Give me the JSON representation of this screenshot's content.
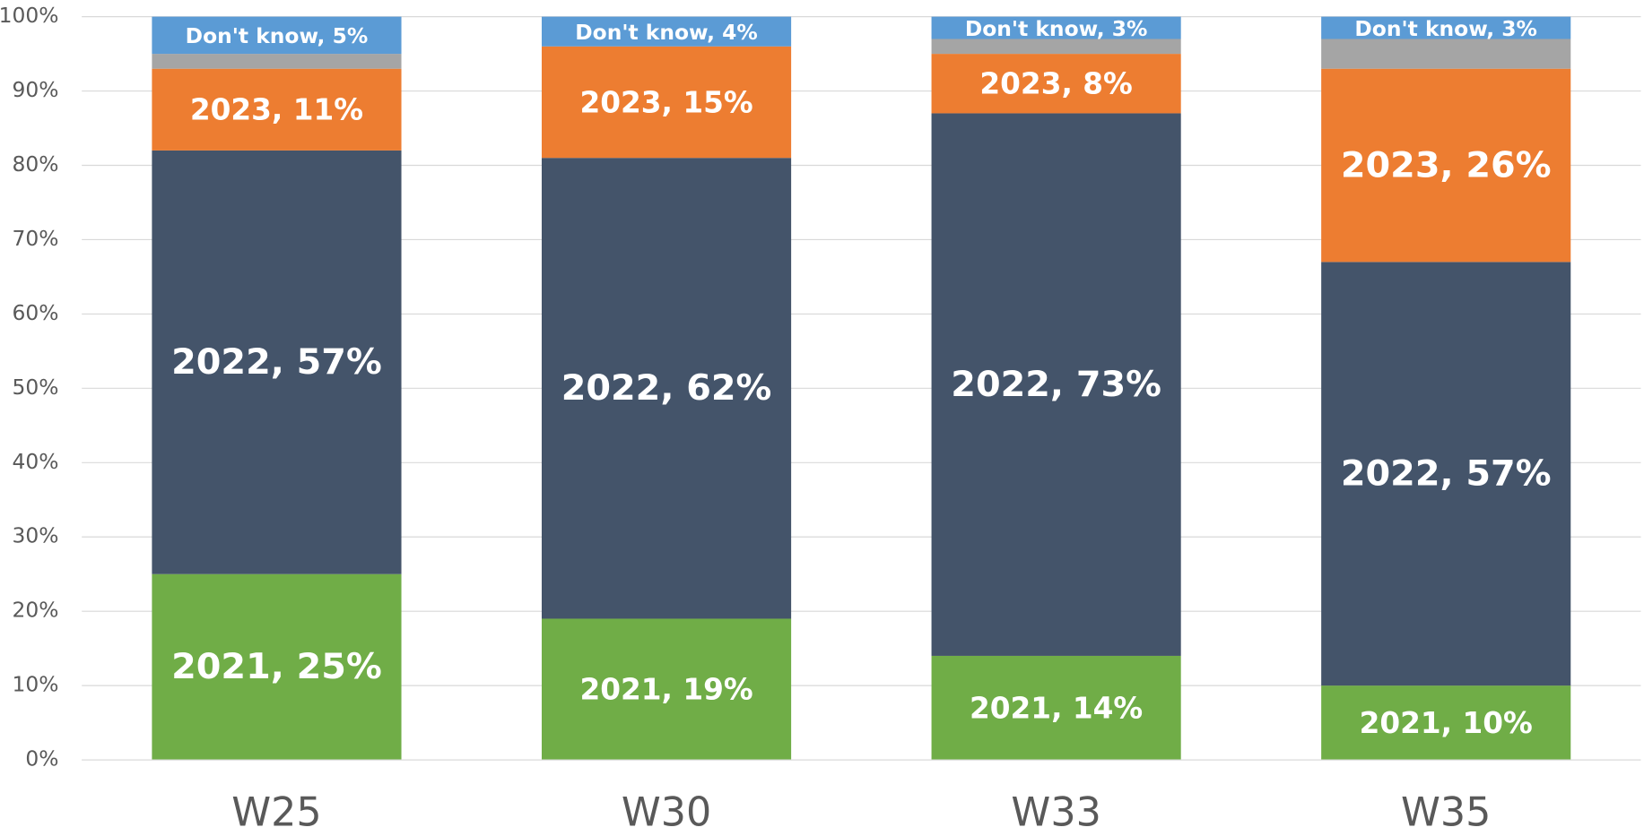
{
  "chart_data": {
    "type": "stacked_bar",
    "categories": [
      "W25",
      "W30",
      "W33",
      "W35"
    ],
    "series": [
      {
        "name": "2021",
        "color": "#70ad47",
        "values": [
          25,
          19,
          14,
          10
        ],
        "value_labels": [
          "2021, 25%",
          "2021, 19%",
          "2021, 14%",
          "2021, 10%"
        ]
      },
      {
        "name": "2022",
        "color": "#44546a",
        "values": [
          57,
          62,
          73,
          57
        ],
        "value_labels": [
          "2022, 57%",
          "2022, 62%",
          "2022, 73%",
          "2022, 57%"
        ]
      },
      {
        "name": "2023",
        "color": "#ed7d31",
        "values": [
          11,
          15,
          8,
          26
        ],
        "value_labels": [
          "2023, 11%",
          "2023, 15%",
          "2023, 8%",
          "2023, 26%"
        ]
      },
      {
        "color": "#a5a5a5",
        "values": [
          2,
          0,
          2,
          4
        ]
      },
      {
        "name": "Don't know",
        "color": "#5b9bd5",
        "values": [
          5,
          4,
          3,
          3
        ],
        "value_labels": [
          "Don't know, 5%",
          "Don't know, 4%",
          "Don't know, 3%",
          "Don't know, 3%"
        ]
      }
    ],
    "ylim": [
      0,
      100
    ],
    "yticks": [
      {
        "value": 0,
        "label": "0%"
      },
      {
        "value": 10,
        "label": "10%"
      },
      {
        "value": 20,
        "label": "20%"
      },
      {
        "value": 30,
        "label": "30%"
      },
      {
        "value": 40,
        "label": "40%"
      },
      {
        "value": 50,
        "label": "50%"
      },
      {
        "value": 60,
        "label": "60%"
      },
      {
        "value": 70,
        "label": "70%"
      },
      {
        "value": 80,
        "label": "80%"
      },
      {
        "value": 90,
        "label": "90%"
      },
      {
        "value": 100,
        "label": "100%"
      }
    ],
    "grid": true
  }
}
